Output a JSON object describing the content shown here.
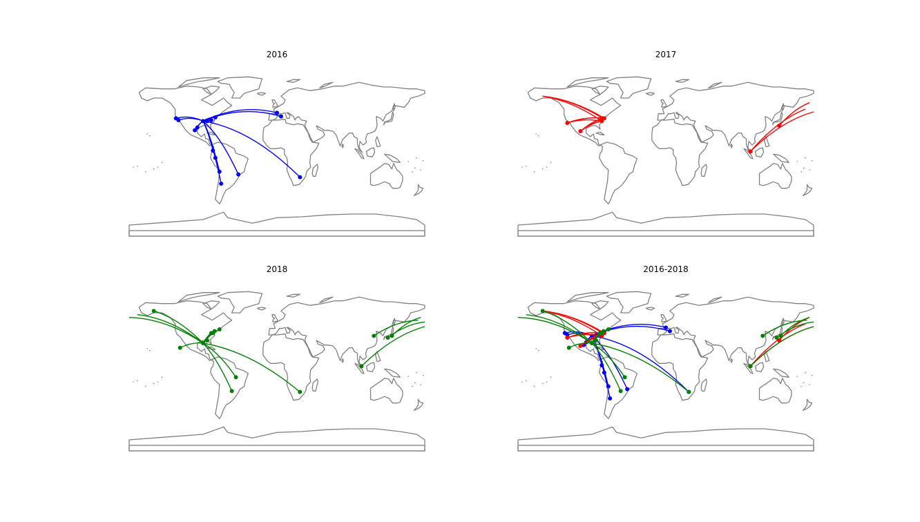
{
  "panels": [
    {
      "id": "2016",
      "title": "2016"
    },
    {
      "id": "2017",
      "title": "2017"
    },
    {
      "id": "2018",
      "title": "2018"
    },
    {
      "id": "all",
      "title": "2016-2018"
    }
  ],
  "colors": {
    "land_outline": "#808080",
    "y2016": "#0000ff",
    "y2017": "#ff0000",
    "y2018": "#008000"
  },
  "routes": {
    "2016": {
      "hub": [
        -90,
        35
      ],
      "destinations": [
        [
          -123,
          38
        ],
        [
          -120,
          36
        ],
        [
          -100,
          25
        ],
        [
          -97,
          28
        ],
        [
          -78,
          3
        ],
        [
          -75,
          -5
        ],
        [
          -70,
          -20
        ],
        [
          -68,
          -33
        ],
        [
          -47,
          -23
        ],
        [
          0,
          44
        ],
        [
          5,
          40
        ],
        [
          28,
          -26
        ],
        [
          -85,
          35
        ],
        [
          -80,
          36
        ],
        [
          -75,
          39
        ]
      ]
    },
    "2017": {
      "hubs": [
        [
          -77,
          38
        ],
        [
          -75,
          38
        ],
        [
          -78,
          35
        ]
      ],
      "west_origins": [
        [
          -150,
          62
        ],
        [
          -120,
          33
        ],
        [
          -104,
          24
        ]
      ],
      "asia_routes": [
        [
          [
            103,
            2
          ],
          [
            180,
            45
          ]
        ],
        [
          [
            103,
            2
          ],
          [
            170,
            48
          ]
        ],
        [
          [
            138,
            30
          ],
          [
            175,
            55
          ]
        ]
      ]
    },
    "2018": {
      "hub": [
        -90,
        27
      ],
      "destinations": [
        [
          -118,
          22
        ],
        [
          -85,
          30
        ],
        [
          -80,
          38
        ],
        [
          -78,
          38
        ],
        [
          -76,
          40
        ],
        [
          -70,
          42
        ],
        [
          -50,
          -10
        ],
        [
          -55,
          -25
        ],
        [
          28,
          -26
        ],
        [
          -150,
          62
        ],
        [
          -170,
          58
        ],
        [
          -180,
          55
        ]
      ],
      "asia_routes": [
        [
          [
            103,
            2
          ],
          [
            180,
            45
          ]
        ],
        [
          [
            140,
            35
          ],
          [
            175,
            55
          ]
        ],
        [
          [
            135,
            33
          ],
          [
            180,
            50
          ]
        ],
        [
          [
            118,
            35
          ],
          [
            172,
            52
          ]
        ]
      ]
    }
  }
}
